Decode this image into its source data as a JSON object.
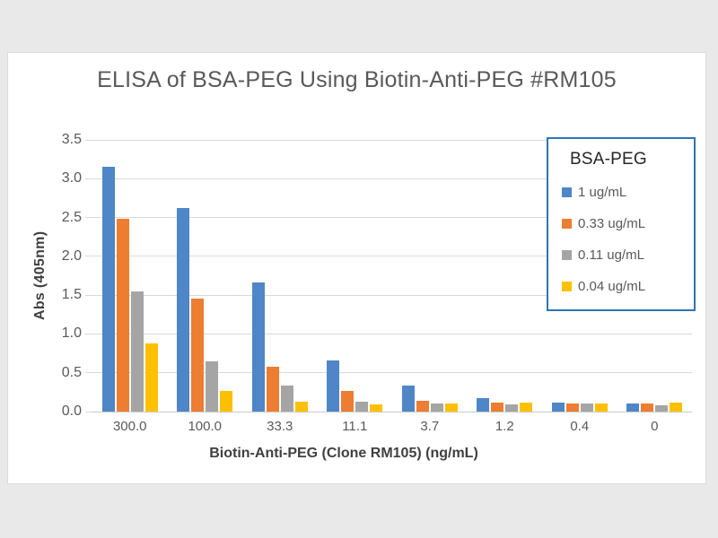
{
  "chart": {
    "title": "ELISA of BSA-PEG Using Biotin-Anti-PEG #RM105",
    "y_axis_title": "Abs (405nm)",
    "x_axis_title": "Biotin-Anti-PEG (Clone RM105) (ng/mL)",
    "legend_title": "BSA-PEG"
  },
  "chart_data": {
    "type": "bar",
    "title": "ELISA of BSA-PEG Using Biotin-Anti-PEG #RM105",
    "xlabel": "Biotin-Anti-PEG (Clone RM105) (ng/mL)",
    "ylabel": "Abs (405nm)",
    "categories": [
      "300.0",
      "100.0",
      "33.3",
      "11.1",
      "3.7",
      "1.2",
      "0.4",
      "0"
    ],
    "series": [
      {
        "name": "1 ug/mL",
        "color": "#4E86C8",
        "values": [
          3.15,
          2.62,
          1.66,
          0.66,
          0.33,
          0.17,
          0.12,
          0.1
        ]
      },
      {
        "name": "0.33 ug/mL",
        "color": "#ED7D31",
        "values": [
          2.48,
          1.45,
          0.58,
          0.26,
          0.14,
          0.12,
          0.1,
          0.1
        ]
      },
      {
        "name": "0.11 ug/mL",
        "color": "#A5A5A5",
        "values": [
          1.55,
          0.65,
          0.33,
          0.13,
          0.1,
          0.09,
          0.1,
          0.08
        ]
      },
      {
        "name": "0.04 ug/mL",
        "color": "#FFC000",
        "values": [
          0.88,
          0.27,
          0.13,
          0.09,
          0.1,
          0.12,
          0.1,
          0.11
        ]
      }
    ],
    "ylim": [
      0,
      3.5
    ],
    "ytick_step": 0.5,
    "ytick_labels": [
      "0.0",
      "0.5",
      "1.0",
      "1.5",
      "2.0",
      "2.5",
      "3.0",
      "3.5"
    ],
    "grid": true,
    "legend_position": "top-right",
    "legend_title": "BSA-PEG",
    "colors": {
      "grid": "#d9d9d9",
      "axis_text": "#595959",
      "axis_title_text": "#404040",
      "legend_border": "#2E75B6",
      "page_background": "#e9e9e9",
      "chart_background": "#ffffff"
    }
  }
}
